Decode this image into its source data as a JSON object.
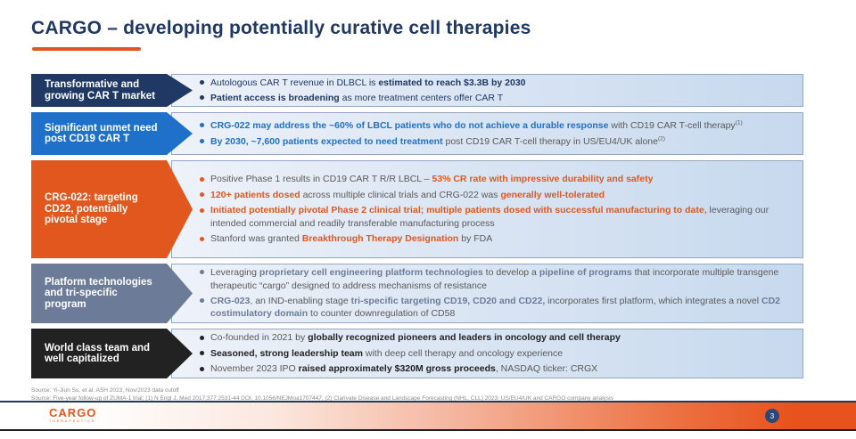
{
  "slide": {
    "title": "CARGO – developing potentially curative cell therapies",
    "page_number": "3",
    "logo": {
      "name": "CARGO",
      "subname": "THERAPEUTICS"
    }
  },
  "colors": {
    "title": "#1F3864",
    "title_underline": "#E0561F",
    "footer_orange": "#E8521C",
    "box_border": "#93a7c2"
  },
  "rows": [
    {
      "label": "Transformative and growing CAR T market",
      "colors": {
        "arrow": "#1F3864",
        "accent": "#1F3864",
        "body": "#1F3864"
      },
      "bullets": [
        [
          {
            "t": "Autologous CAR T revenue in DLBCL is ",
            "b": false
          },
          {
            "t": "estimated to reach $3.3B by 2030",
            "b": true
          }
        ],
        [
          {
            "t": "Patient access is broadening",
            "b": true
          },
          {
            "t": " as more treatment centers offer CAR T",
            "b": false
          }
        ]
      ]
    },
    {
      "label": "Significant unmet need post CD19 CAR T",
      "colors": {
        "arrow": "#1E70C8",
        "accent": "#1E70C8",
        "body": "#595959"
      },
      "bullets": [
        [
          {
            "t": "CRG-022 may address the ~60% of LBCL patients who do not achieve a durable response",
            "b": true
          },
          {
            "t": " with CD19 CAR T-cell therapy",
            "b": false
          },
          {
            "t": "(1)",
            "b": false,
            "sup": true
          }
        ],
        [
          {
            "t": "By 2030, ~7,600 patients expected to need treatment",
            "b": true
          },
          {
            "t": " post CD19 CAR T-cell therapy in US/EU4/UK alone",
            "b": false
          },
          {
            "t": "(2)",
            "b": false,
            "sup": true
          }
        ]
      ]
    },
    {
      "label": "CRG-022: targeting CD22, potentially pivotal stage",
      "colors": {
        "arrow": "#E2571D",
        "accent": "#E2571D",
        "body": "#595959"
      },
      "bullets": [
        [
          {
            "t": "Positive Phase 1 results in CD19 CAR T R/R LBCL – ",
            "b": false
          },
          {
            "t": "53% CR rate with impressive durability and safety",
            "b": true
          }
        ],
        [
          {
            "t": "120+ patients dosed",
            "b": true
          },
          {
            "t": " across multiple clinical trials and CRG-022 was ",
            "b": false
          },
          {
            "t": "generally well-tolerated",
            "b": true
          }
        ],
        [
          {
            "t": "Initiated potentially pivotal Phase 2 clinical trial; multiple patients dosed with successful manufacturing to date,",
            "b": true
          },
          {
            "t": " leveraging our intended commercial and readily transferable manufacturing process",
            "b": false
          }
        ],
        [
          {
            "t": "Stanford was granted ",
            "b": false
          },
          {
            "t": "Breakthrough Therapy Designation",
            "b": true
          },
          {
            "t": " by FDA",
            "b": false
          }
        ]
      ]
    },
    {
      "label": "Platform technologies and tri-specific program",
      "colors": {
        "arrow": "#6C7B98",
        "accent": "#6C7B98",
        "body": "#595959"
      },
      "bullets": [
        [
          {
            "t": "Leveraging ",
            "b": false
          },
          {
            "t": "proprietary cell engineering platform technologies",
            "b": true
          },
          {
            "t": " to develop a ",
            "b": false
          },
          {
            "t": "pipeline of programs",
            "b": true
          },
          {
            "t": " that incorporate multiple transgene therapeutic “cargo” designed to address mechanisms of resistance",
            "b": false
          }
        ],
        [
          {
            "t": "CRG-023",
            "b": true
          },
          {
            "t": ", an IND-enabling stage ",
            "b": false
          },
          {
            "t": "tri-specific targeting CD19, CD20 and CD22,",
            "b": true
          },
          {
            "t": " incorporates first platform, which integrates a novel ",
            "b": false
          },
          {
            "t": "CD2 costimulatory domain",
            "b": true
          },
          {
            "t": " to counter downregulation of CD58",
            "b": false
          }
        ]
      ]
    },
    {
      "label": "World class team and well capitalized",
      "colors": {
        "arrow": "#222222",
        "accent": "#222222",
        "body": "#595959"
      },
      "bullets": [
        [
          {
            "t": "Co-founded in 2021 by ",
            "b": false
          },
          {
            "t": "globally recognized pioneers and leaders in oncology and cell therapy",
            "b": true
          }
        ],
        [
          {
            "t": "Seasoned, strong leadership team",
            "b": true
          },
          {
            "t": " with deep cell therapy and oncology experience",
            "b": false
          }
        ],
        [
          {
            "t": "November 2023 IPO ",
            "b": false
          },
          {
            "t": "raised approximately $320M gross proceeds",
            "b": true
          },
          {
            "t": ", NASDAQ ticker: CRGX",
            "b": false
          }
        ]
      ]
    }
  ],
  "footnotes": [
    "Source: Yi-Jiun Su, et al. ASH 2023, Nov/2023 data cutoff",
    "Source: Five-year follow-up of ZUMA-1 trial; (1) N Engl J. Med 2017;377:2531-44 DOI: 10.1056/NEJMoa1707447; (2) Clarivate Disease and Landscape Forecasting (NHL, CLL) 2023; US/EU4/UK and CARGO company analysis"
  ]
}
